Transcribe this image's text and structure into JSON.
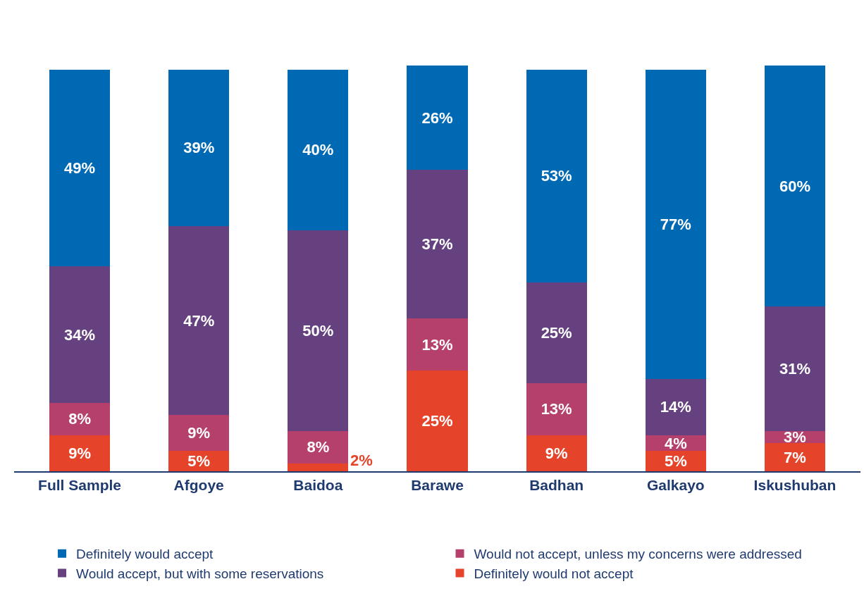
{
  "chart_data": {
    "type": "bar",
    "stacked": true,
    "data_labels": true,
    "legend": "bottom",
    "categories": [
      "Full Sample",
      "Afgoye",
      "Baidoa",
      "Barawe",
      "Badhan",
      "Galkayo",
      "Iskushuban"
    ],
    "series": [
      {
        "name": "Definitely would not accept",
        "color": "#e5432a",
        "values": [
          9,
          5,
          2,
          25,
          9,
          5,
          7
        ],
        "value_labels": [
          "9%",
          "5%",
          "2%",
          "25%",
          "9%",
          "5%",
          "7%"
        ]
      },
      {
        "name": "Would not accept, unless my concerns were addressed",
        "color": "#b5406b",
        "values": [
          8,
          9,
          8,
          13,
          13,
          4,
          3
        ],
        "value_labels": [
          "8%",
          "9%",
          "8%",
          "13%",
          "13%",
          "4%",
          "3%"
        ]
      },
      {
        "name": "Would accept, but with some reservations",
        "color": "#65427f",
        "values": [
          34,
          47,
          50,
          37,
          25,
          14,
          31
        ],
        "value_labels": [
          "34%",
          "47%",
          "50%",
          "37%",
          "25%",
          "14%",
          "31%"
        ]
      },
      {
        "name": "Definitely would accept",
        "color": "#0069b4",
        "values": [
          49,
          39,
          40,
          26,
          53,
          77,
          60
        ],
        "value_labels": [
          "49%",
          "39%",
          "40%",
          "26%",
          "53%",
          "77%",
          "60%"
        ]
      }
    ]
  }
}
